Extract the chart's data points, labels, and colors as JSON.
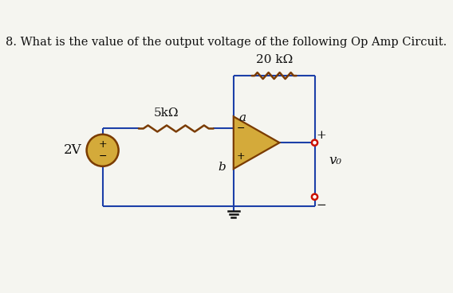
{
  "title": "8. What is the value of the output voltage of the following Op Amp Circuit.",
  "title_fontsize": 10.5,
  "bg_color": "#f5f5f0",
  "resistor_20k_label": "20 kΩ",
  "resistor_5k_label": "5kΩ",
  "node_a_label": "a",
  "node_b_label": "b",
  "voltage_label": "2V",
  "output_label": "v₀",
  "plus_sign": "+",
  "minus_sign": "−",
  "wire_color": "#1c3fa8",
  "resistor_color": "#7a3b00",
  "opamp_fill": "#d4aa3a",
  "opamp_edge": "#7a3b00",
  "source_fill": "#d4aa3a",
  "source_edge": "#7a3b00",
  "terminal_color": "#cc1100",
  "ground_color": "#111111",
  "text_color": "#111111",
  "wire_lw": 1.5,
  "res_lw": 1.8
}
